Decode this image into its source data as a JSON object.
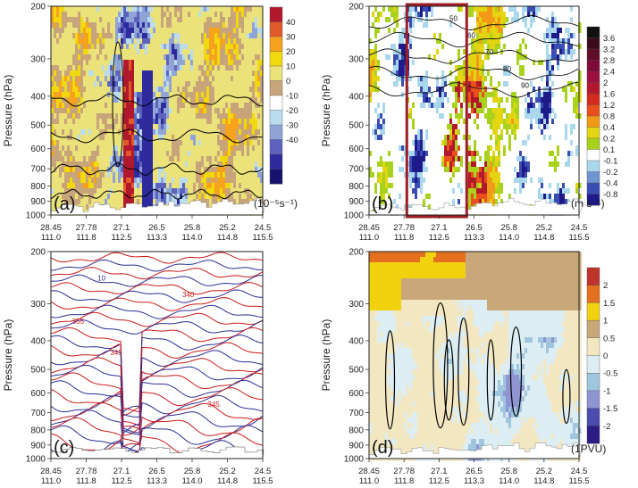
{
  "figure": {
    "y_axis_label": "Pressure (hPa)",
    "y_ticks": [
      "200",
      "300",
      "400",
      "500",
      "600",
      "700",
      "800",
      "900",
      "1000"
    ],
    "x_ticks_lat": [
      "28.45",
      "27.78",
      "27.1",
      "26.5",
      "25.8",
      "25.2",
      "24.5"
    ],
    "x_ticks_lon": [
      "111.0",
      "111.8",
      "112.5",
      "113.3",
      "114.0",
      "114.8",
      "115.5"
    ]
  },
  "chart_data": [
    {
      "panel": "a",
      "type": "heatmap",
      "label": "(a)",
      "ylabel": "Pressure (hPa)",
      "ylim": [
        1000,
        200
      ],
      "yscale": "log-pressure",
      "colorbar": {
        "unit": "(10⁻⁵s⁻¹)",
        "levels": [
          "40",
          "30",
          "20",
          "10",
          "0",
          "-10",
          "-20",
          "-30",
          "-40"
        ],
        "colors": [
          "#b2182b",
          "#e2592a",
          "#f6a21c",
          "#f2d90e",
          "#ebe27a",
          "#c8a47a",
          "#ffffff",
          "#b9dcee",
          "#8fa3d6",
          "#5d63bd",
          "#2e2b9e",
          "#17126d"
        ]
      },
      "contours": "black contours"
    },
    {
      "panel": "b",
      "type": "heatmap",
      "label": "(b)",
      "ylabel": "Pressure (hPa)",
      "ylim": [
        1000,
        200
      ],
      "colorbar": {
        "unit": "(m s⁻¹)",
        "levels": [
          "3.6",
          "3.2",
          "2.8",
          "2.4",
          "2",
          "1.6",
          "1.2",
          "0.8",
          "0.4",
          "0.2",
          "0.1",
          "-0.1",
          "-0.2",
          "-0.4",
          "-0.8"
        ],
        "colors": [
          "#111111",
          "#3a0c1a",
          "#5e0c2a",
          "#7f0a3a",
          "#9b1040",
          "#b2182b",
          "#d12a1e",
          "#e9501c",
          "#f29a18",
          "#e3d512",
          "#a8d21b",
          "#ffffff",
          "#a9d8ee",
          "#6f94d1",
          "#3a4db4",
          "#1e1a8a"
        ]
      },
      "contour_labels": [
        "50",
        "60",
        "70",
        "80",
        "90"
      ],
      "highlight_box_color": "#9e1c24"
    },
    {
      "panel": "c",
      "type": "line",
      "label": "(c)",
      "ylabel": "Pressure (hPa)",
      "ylim": [
        1000,
        200
      ],
      "series_colors": [
        "#cc1a1a",
        "#2b2e96"
      ],
      "contour_labels": [
        "345",
        "10",
        "345",
        "340",
        "355"
      ]
    },
    {
      "panel": "d",
      "type": "heatmap",
      "label": "(d)",
      "ylabel": "Pressure (hPa)",
      "ylim": [
        1000,
        200
      ],
      "colorbar": {
        "unit": "(1PVU)",
        "levels": [
          "2",
          "1.5",
          "1",
          "0.5",
          "0",
          "-0.5",
          "-1",
          "-1.5",
          "-2"
        ],
        "colors": [
          "#c0332b",
          "#e4701f",
          "#f2d20f",
          "#c8a779",
          "#f3e7c2",
          "#dcedf3",
          "#9fc6de",
          "#8f95d2",
          "#4b4cae",
          "#2c1d82"
        ]
      },
      "contours": "black contours"
    }
  ]
}
